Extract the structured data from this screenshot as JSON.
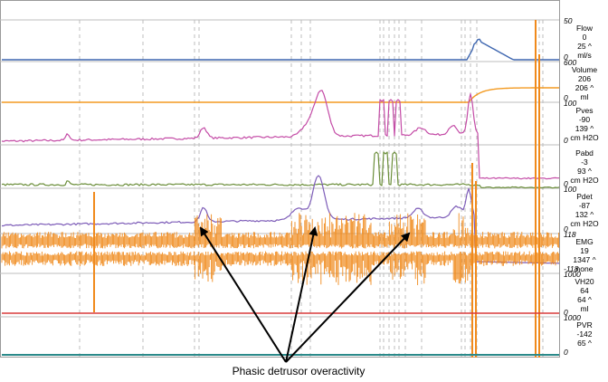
{
  "chart_data": {
    "type": "line",
    "annotation": "Phasic detrusor overactivity",
    "channels": [
      {
        "name": "Flow",
        "value": "0",
        "max": "25 ^",
        "unit": "ml/s",
        "scale_top": "50",
        "scale_bottom": "0",
        "color": "#3f67b0"
      },
      {
        "name": "Volume",
        "value": "206",
        "max": "206 ^",
        "unit": "ml",
        "scale_top": "600",
        "scale_bottom": "0",
        "color": "#f39a20"
      },
      {
        "name": "Pves",
        "value": "-90",
        "max": "139 ^",
        "unit": "cm H2O",
        "scale_top": "100",
        "scale_bottom": "0",
        "color": "#c44ba6"
      },
      {
        "name": "Pabd",
        "value": "-3",
        "max": "93 ^",
        "unit": "cm H2O",
        "scale_top": "",
        "scale_bottom": "0",
        "color": "#6b8e3a"
      },
      {
        "name": "Pdet",
        "value": "-87",
        "max": "132 ^",
        "unit": "cm H2O",
        "scale_top": "100",
        "scale_bottom": "0",
        "color": "#7d5cb8"
      },
      {
        "name": "EMG",
        "value": "19",
        "max": "1347 ^",
        "unit": "none",
        "scale_top": "118",
        "scale_bottom": "-118",
        "color": "#f08a1c"
      },
      {
        "name": "VH20",
        "value": "64",
        "max": "64 ^",
        "unit": "ml",
        "scale_top": "1000",
        "scale_bottom": "0",
        "color": "#d93a3a"
      },
      {
        "name": "PVR",
        "value": "-142",
        "max": "65 ^",
        "unit": "",
        "scale_top": "1000",
        "scale_bottom": "0",
        "color": "#2b8a8a"
      }
    ]
  }
}
